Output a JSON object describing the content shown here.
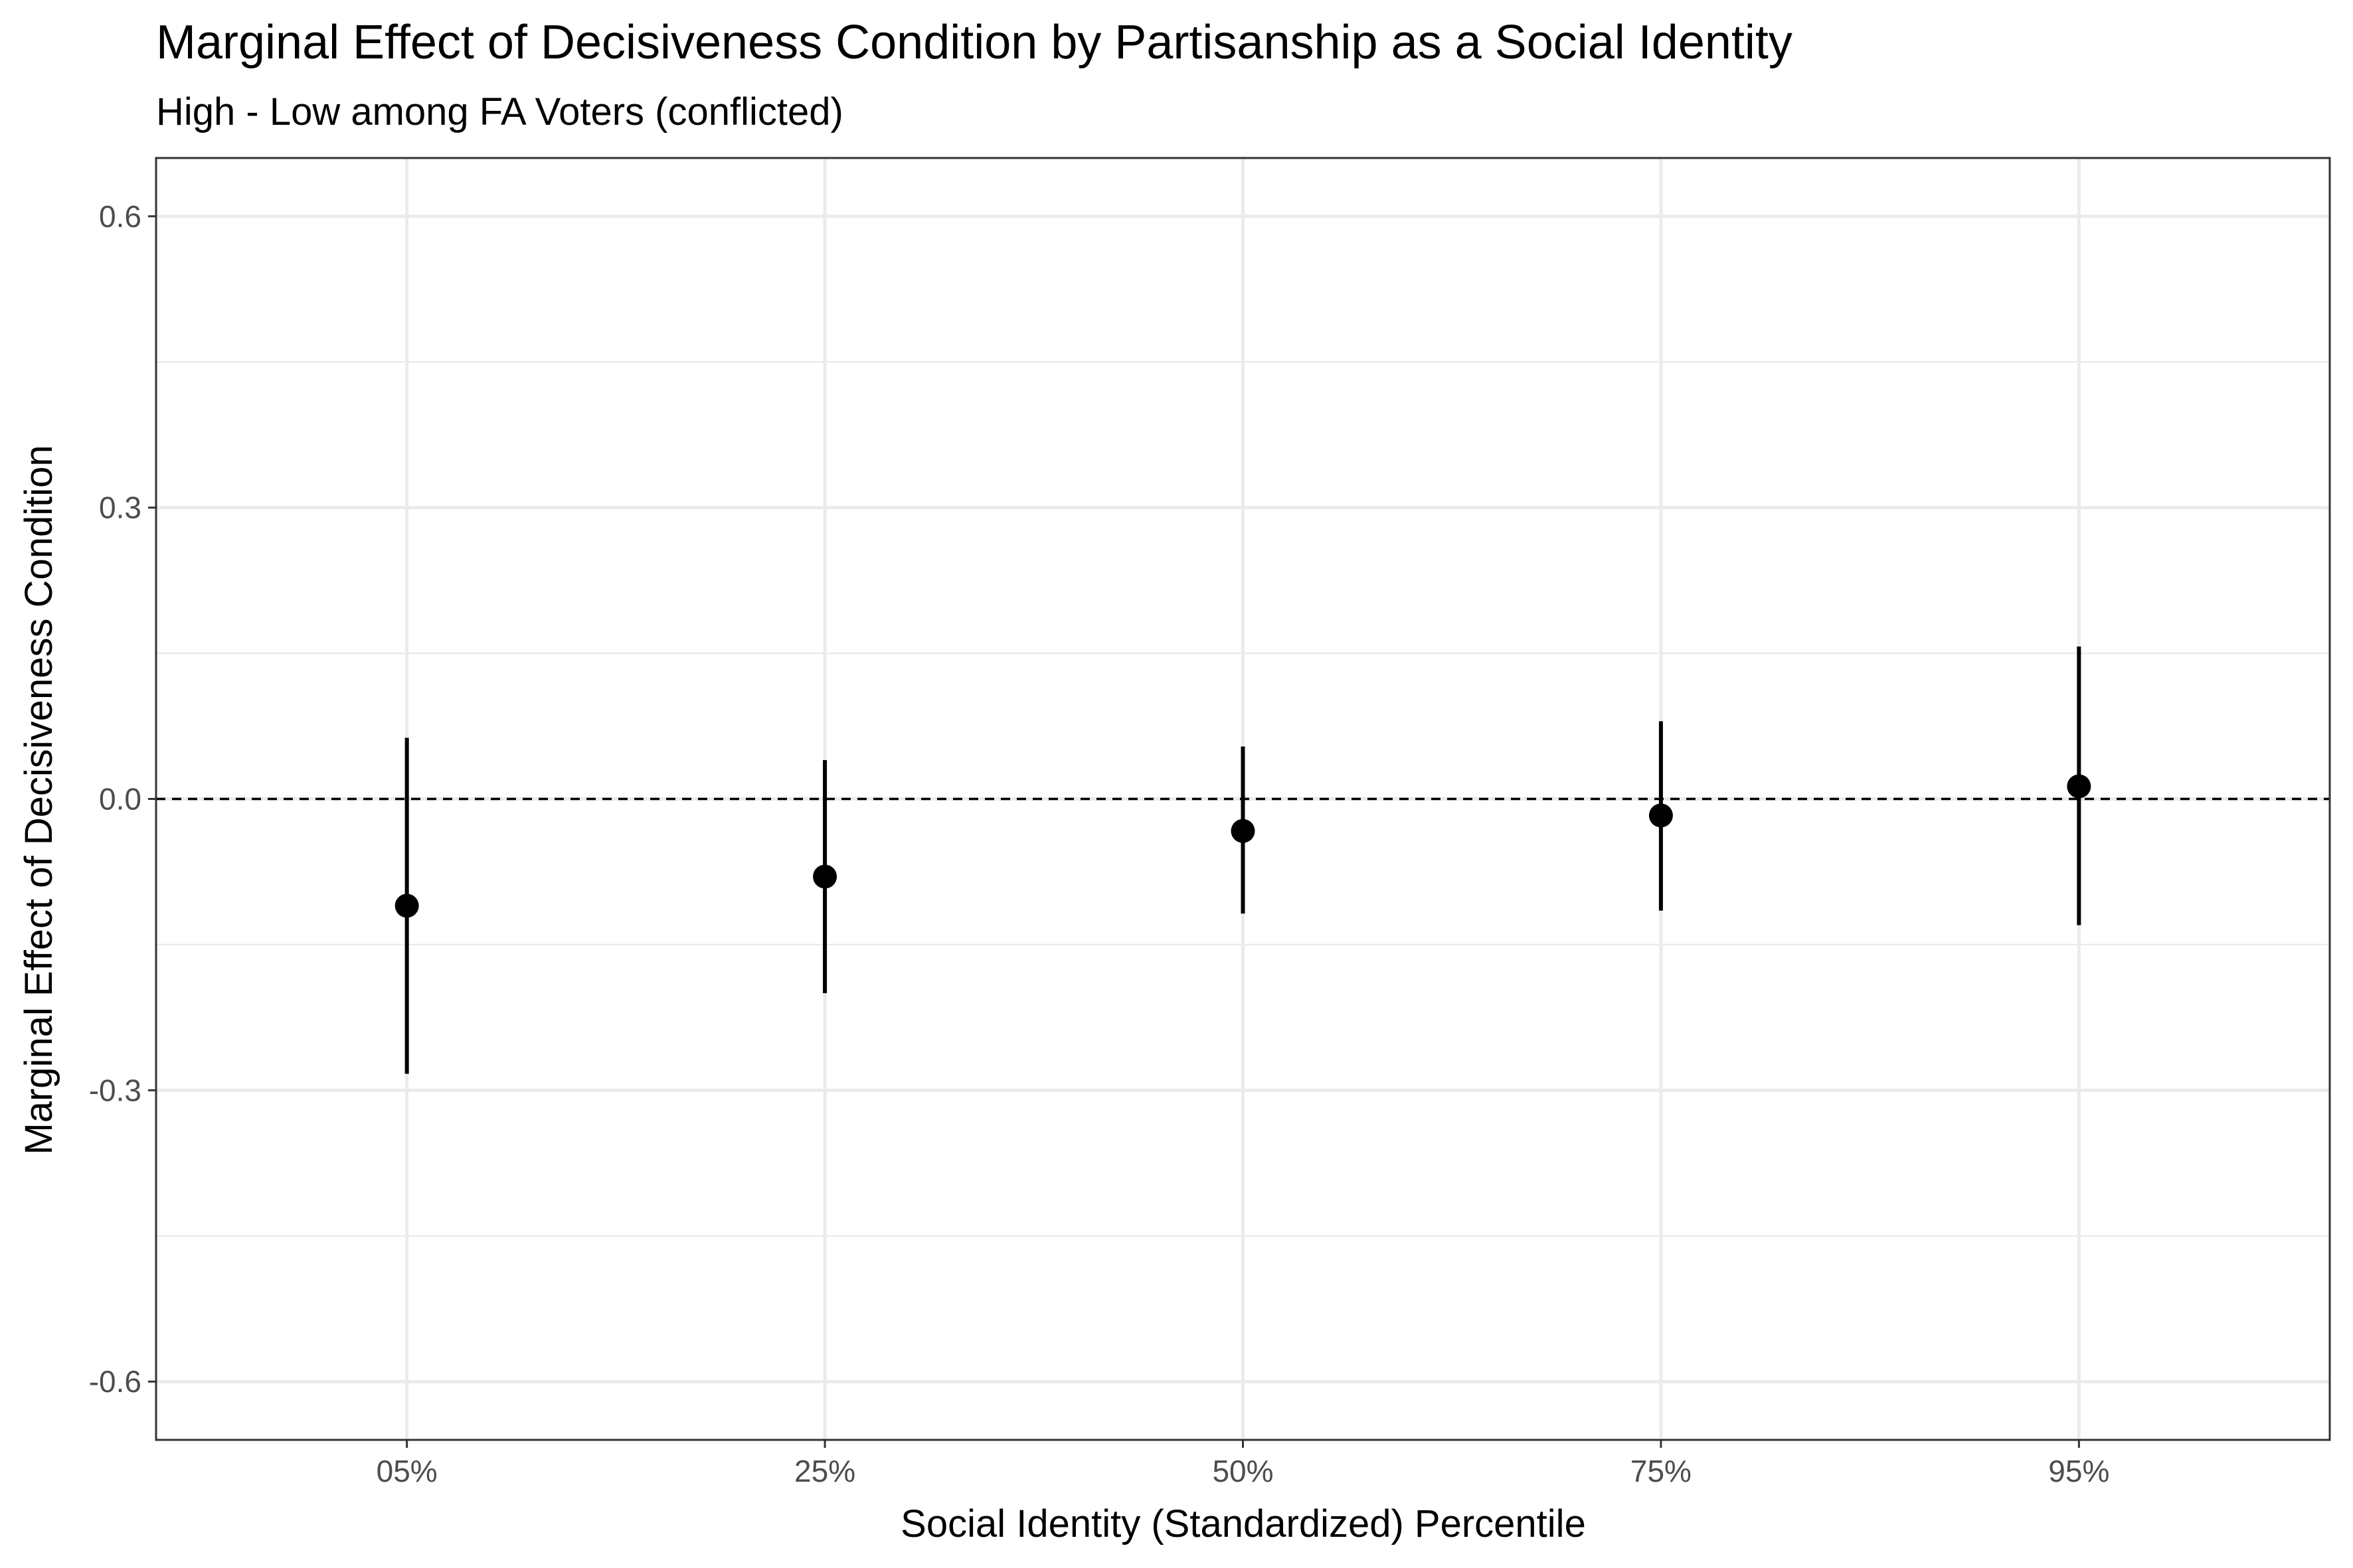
{
  "chart_data": {
    "type": "scatter",
    "title": "Marginal Effect of Decisiveness Condition by Partisanship as a Social Identity",
    "subtitle": "High - Low among FA Voters (conflicted)",
    "xlabel": "Social Identity (Standardized) Percentile",
    "ylabel": "Marginal Effect of Decisiveness Condition",
    "categories": [
      "05%",
      "25%",
      "50%",
      "75%",
      "95%"
    ],
    "estimates": [
      -0.11,
      -0.08,
      -0.033,
      -0.017,
      0.013
    ],
    "ci_lower": [
      -0.283,
      -0.2,
      -0.118,
      -0.115,
      -0.13
    ],
    "ci_upper": [
      0.063,
      0.04,
      0.054,
      0.08,
      0.157
    ],
    "ylim": [
      -0.66,
      0.66
    ],
    "yticks": [
      -0.6,
      -0.3,
      0.0,
      0.3,
      0.6
    ],
    "ytick_labels": [
      "-0.6",
      "-0.3",
      "0.0",
      "0.3",
      "0.6"
    ],
    "reference_line": 0.0,
    "grid": true,
    "colors": {
      "point": "#000000",
      "grid": "#ebebeb",
      "tick_text": "#4d4d4d",
      "panel_border": "#333333"
    }
  }
}
